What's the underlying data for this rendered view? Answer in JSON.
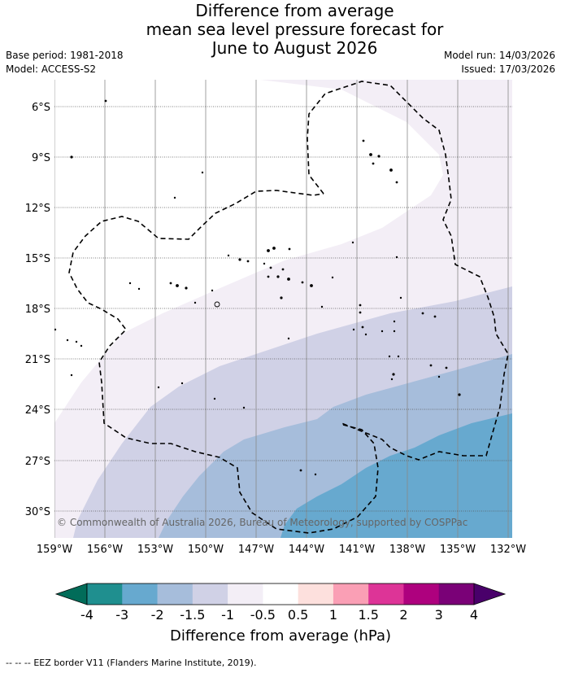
{
  "title": {
    "line1": "Difference from average",
    "line2": "mean sea level pressure forecast for",
    "line3": "June to August 2026"
  },
  "meta": {
    "base_period": "Base period: 1981-2018",
    "model": "Model: ACCESS-S2",
    "model_run": "Model run: 14/03/2026",
    "issued": "Issued: 17/03/2026"
  },
  "map": {
    "lat_labels": [
      "6°S",
      "9°S",
      "12°S",
      "15°S",
      "18°S",
      "21°S",
      "24°S",
      "27°S",
      "30°S"
    ],
    "lon_labels": [
      "159°W",
      "156°W",
      "153°W",
      "150°W",
      "147°W",
      "144°W",
      "141°W",
      "138°W",
      "135°W",
      "132°W"
    ],
    "copyright": "© Commonwealth of Australia 2026, Bureau of Meteorology, supported by COSPPac",
    "colors": {
      "m05_m1": "#f3eef6",
      "m1_m15": "#d0d1e6",
      "m15_m2": "#a6bddb",
      "m2_m3": "#67a9cf"
    }
  },
  "colorbar": {
    "title": "Difference from average (hPa)",
    "tick_labels": [
      "-4",
      "-3",
      "-2",
      "-1.5",
      "-1",
      "-0.5",
      "0.5",
      "1",
      "1.5",
      "2",
      "3",
      "4"
    ],
    "colors": [
      "#1f8f8f",
      "#67a9cf",
      "#a6bddb",
      "#d0d1e6",
      "#f3eef6",
      "#ffffff",
      "#fde0dd",
      "#fa9fb5",
      "#dd3497",
      "#ae017e",
      "#7a0177"
    ],
    "under_color": "#016c59",
    "over_color": "#49006a"
  },
  "footer": {
    "legend_symbol": "-- -- --",
    "legend_text": "EEZ border V11 (Flanders Marine Institute, 2019)."
  }
}
